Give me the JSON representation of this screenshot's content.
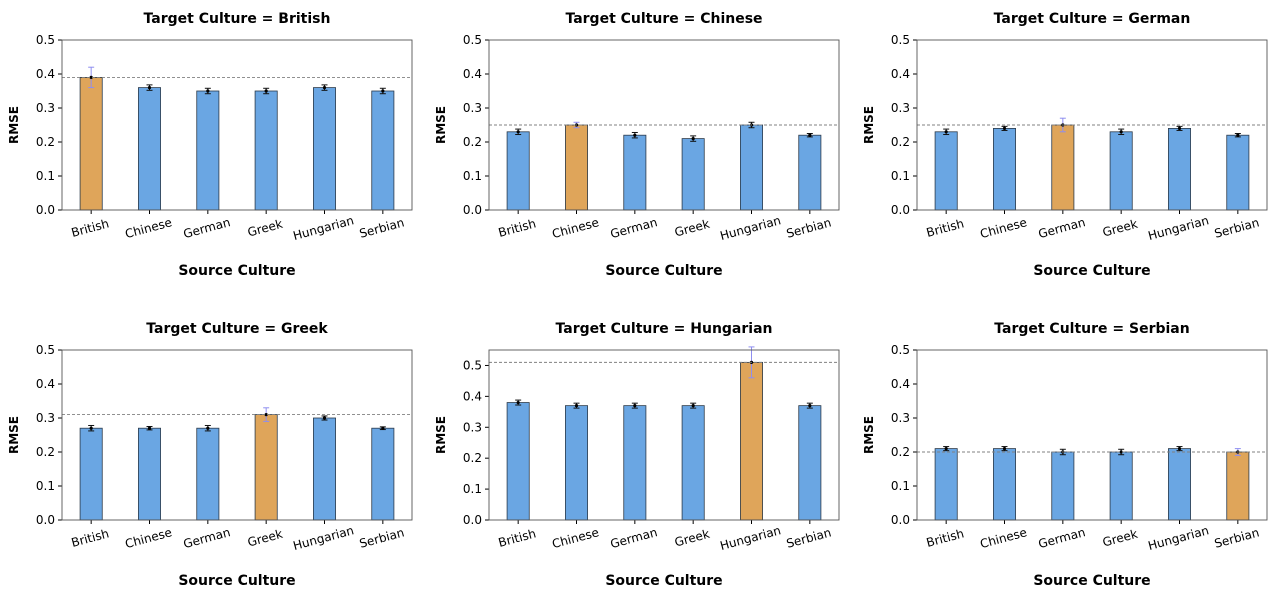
{
  "colors": {
    "source_bar": "#6aa6e3",
    "target_bar": "#dfa55a",
    "bar_edge": "#2b3a4a",
    "reference_line": "#808080",
    "error_bar_target": "#8e8ef0",
    "error_bar": "#111111"
  },
  "chart_data": [
    {
      "type": "bar",
      "title": "Target Culture = British",
      "xlabel": "Source Culture",
      "ylabel": "RMSE",
      "categories": [
        "British",
        "Chinese",
        "German",
        "Greek",
        "Hungarian",
        "Serbian"
      ],
      "values": [
        0.39,
        0.36,
        0.35,
        0.35,
        0.36,
        0.35
      ],
      "errors": [
        0.03,
        0.008,
        0.008,
        0.008,
        0.008,
        0.008
      ],
      "highlight": "British",
      "reference_line": 0.39,
      "ylim": [
        0,
        0.5
      ],
      "yticks": [
        "0.0",
        "0.1",
        "0.2",
        "0.3",
        "0.4",
        "0.5"
      ],
      "grid": false
    },
    {
      "type": "bar",
      "title": "Target Culture = Chinese",
      "xlabel": "Source Culture",
      "ylabel": "RMSE",
      "categories": [
        "British",
        "Chinese",
        "German",
        "Greek",
        "Hungarian",
        "Serbian"
      ],
      "values": [
        0.23,
        0.25,
        0.22,
        0.21,
        0.25,
        0.22
      ],
      "errors": [
        0.008,
        0.008,
        0.008,
        0.008,
        0.008,
        0.005
      ],
      "highlight": "Chinese",
      "reference_line": 0.25,
      "ylim": [
        0,
        0.5
      ],
      "yticks": [
        "0.0",
        "0.1",
        "0.2",
        "0.3",
        "0.4",
        "0.5"
      ],
      "grid": false
    },
    {
      "type": "bar",
      "title": "Target Culture = German",
      "xlabel": "Source Culture",
      "ylabel": "RMSE",
      "categories": [
        "British",
        "Chinese",
        "German",
        "Greek",
        "Hungarian",
        "Serbian"
      ],
      "values": [
        0.23,
        0.24,
        0.25,
        0.23,
        0.24,
        0.22
      ],
      "errors": [
        0.008,
        0.006,
        0.02,
        0.008,
        0.006,
        0.005
      ],
      "highlight": "German",
      "reference_line": 0.25,
      "ylim": [
        0,
        0.5
      ],
      "yticks": [
        "0.0",
        "0.1",
        "0.2",
        "0.3",
        "0.4",
        "0.5"
      ],
      "grid": false
    },
    {
      "type": "bar",
      "title": "Target Culture = Greek",
      "xlabel": "Source Culture",
      "ylabel": "RMSE",
      "categories": [
        "British",
        "Chinese",
        "German",
        "Greek",
        "Hungarian",
        "Serbian"
      ],
      "values": [
        0.27,
        0.27,
        0.27,
        0.31,
        0.3,
        0.27
      ],
      "errors": [
        0.008,
        0.005,
        0.008,
        0.02,
        0.006,
        0.004
      ],
      "highlight": "Greek",
      "reference_line": 0.31,
      "ylim": [
        0,
        0.5
      ],
      "yticks": [
        "0.0",
        "0.1",
        "0.2",
        "0.3",
        "0.4",
        "0.5"
      ],
      "grid": false
    },
    {
      "type": "bar",
      "title": "Target Culture = Hungarian",
      "xlabel": "Source Culture",
      "ylabel": "RMSE",
      "categories": [
        "British",
        "Chinese",
        "German",
        "Greek",
        "Hungarian",
        "Serbian"
      ],
      "values": [
        0.38,
        0.37,
        0.37,
        0.37,
        0.51,
        0.37
      ],
      "errors": [
        0.008,
        0.008,
        0.008,
        0.008,
        0.05,
        0.008
      ],
      "highlight": "Hungarian",
      "reference_line": 0.51,
      "ylim": [
        0,
        0.55
      ],
      "yticks": [
        "0.0",
        "0.1",
        "0.2",
        "0.3",
        "0.4",
        "0.5"
      ],
      "grid": false
    },
    {
      "type": "bar",
      "title": "Target Culture = Serbian",
      "xlabel": "Source Culture",
      "ylabel": "RMSE",
      "categories": [
        "British",
        "Chinese",
        "German",
        "Greek",
        "Hungarian",
        "Serbian"
      ],
      "values": [
        0.21,
        0.21,
        0.2,
        0.2,
        0.21,
        0.2
      ],
      "errors": [
        0.006,
        0.006,
        0.008,
        0.008,
        0.006,
        0.01
      ],
      "highlight": "Serbian",
      "reference_line": 0.2,
      "ylim": [
        0,
        0.5
      ],
      "yticks": [
        "0.0",
        "0.1",
        "0.2",
        "0.3",
        "0.4",
        "0.5"
      ],
      "grid": false
    }
  ]
}
